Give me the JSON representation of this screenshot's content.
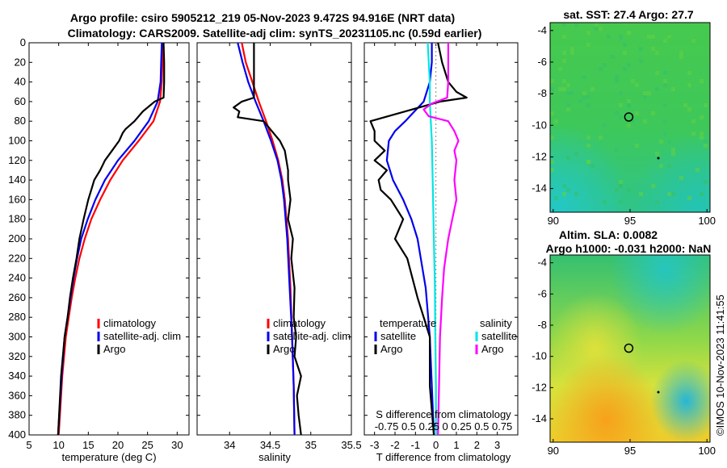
{
  "header": {
    "title_line1": "Argo profile: csiro 5905212_219 05-Nov-2023 9.472S 94.916E (NRT data)",
    "title_line2": "Climatology: CARS2009. Satellite-adj clim: synTS_20231105.nc (0.59d earlier)"
  },
  "colors": {
    "climatology": "#ff0000",
    "satellite": "#0000ee",
    "argo": "#000000",
    "sal_satellite": "#00e5e5",
    "sal_argo": "#ff00ff"
  },
  "chart_data": [
    {
      "type": "line",
      "id": "temperature",
      "xlabel": "temperature (deg C)",
      "ylabel": "",
      "xlim": [
        5,
        32
      ],
      "ylim": [
        400,
        0
      ],
      "xticks": [
        "5",
        "10",
        "15",
        "20",
        "25",
        "30"
      ],
      "xtick_values": [
        5,
        10,
        15,
        20,
        25,
        30
      ],
      "yticks": [
        "0",
        "20",
        "40",
        "60",
        "80",
        "100",
        "120",
        "140",
        "160",
        "180",
        "200",
        "220",
        "240",
        "260",
        "280",
        "300",
        "320",
        "340",
        "360",
        "380",
        "400"
      ],
      "ytick_values": [
        0,
        20,
        40,
        60,
        80,
        100,
        120,
        140,
        160,
        180,
        200,
        220,
        240,
        260,
        280,
        300,
        320,
        340,
        360,
        380,
        400
      ],
      "legend": [
        "climatology",
        "satellite-adj. clim",
        "Argo"
      ],
      "series": [
        {
          "name": "climatology",
          "depth": [
            0,
            20,
            40,
            60,
            80,
            100,
            120,
            140,
            160,
            180,
            200,
            220,
            240,
            260,
            280,
            300,
            340,
            400
          ],
          "values": [
            27.6,
            27.5,
            27.4,
            27.1,
            26.0,
            23.5,
            20.8,
            18.7,
            17.0,
            15.5,
            14.4,
            13.5,
            12.8,
            12.2,
            11.7,
            11.2,
            10.6,
            10.0
          ]
        },
        {
          "name": "satellite-adj. clim",
          "depth": [
            0,
            20,
            40,
            60,
            80,
            100,
            120,
            140,
            160,
            180,
            200,
            220,
            240,
            260,
            280,
            300,
            340,
            400
          ],
          "values": [
            27.4,
            27.3,
            27.2,
            26.7,
            25.2,
            22.8,
            20.0,
            17.8,
            16.2,
            14.9,
            13.8,
            13.1,
            12.5,
            12.0,
            11.5,
            11.0,
            10.5,
            9.9
          ]
        },
        {
          "name": "Argo",
          "depth": [
            0,
            20,
            40,
            56,
            60,
            70,
            80,
            88,
            92,
            100,
            110,
            120,
            130,
            140,
            150,
            160,
            170,
            180,
            200,
            220,
            240,
            260,
            280,
            300,
            340,
            400
          ],
          "values": [
            27.7,
            27.8,
            27.8,
            27.7,
            26.2,
            24.2,
            22.8,
            21.3,
            20.8,
            20.2,
            19.0,
            17.8,
            17.0,
            16.0,
            15.5,
            15.0,
            14.6,
            14.2,
            13.5,
            13.0,
            12.4,
            11.9,
            11.5,
            11.0,
            10.4,
            9.9
          ]
        }
      ]
    },
    {
      "type": "line",
      "id": "salinity",
      "xlabel": "salinity",
      "xlim": [
        33.6,
        35.5
      ],
      "ylim": [
        400,
        0
      ],
      "xticks": [
        "34",
        "34.5",
        "35",
        "35.5"
      ],
      "xtick_values": [
        34,
        34.5,
        35,
        35.5
      ],
      "legend": [
        "climatology",
        "satellite-adj. clim",
        "Argo"
      ],
      "series": [
        {
          "name": "climatology",
          "depth": [
            0,
            20,
            40,
            60,
            80,
            100,
            120,
            140,
            160,
            180,
            200,
            250,
            300,
            350,
            400
          ],
          "values": [
            34.15,
            34.2,
            34.28,
            34.36,
            34.45,
            34.53,
            34.6,
            34.65,
            34.68,
            34.7,
            34.72,
            34.75,
            34.77,
            34.79,
            34.8
          ]
        },
        {
          "name": "satellite-adj. clim",
          "depth": [
            0,
            20,
            40,
            60,
            80,
            100,
            120,
            140,
            160,
            180,
            200,
            250,
            300,
            350,
            400
          ],
          "values": [
            34.1,
            34.16,
            34.23,
            34.32,
            34.42,
            34.51,
            34.59,
            34.64,
            34.67,
            34.69,
            34.71,
            34.74,
            34.77,
            34.79,
            34.8
          ]
        },
        {
          "name": "Argo",
          "depth": [
            0,
            20,
            40,
            56,
            60,
            66,
            70,
            76,
            80,
            90,
            100,
            110,
            120,
            130,
            140,
            160,
            180,
            200,
            220,
            250,
            280,
            300,
            320,
            340,
            360,
            380,
            400
          ],
          "values": [
            34.3,
            34.3,
            34.3,
            34.3,
            34.15,
            34.05,
            34.12,
            34.1,
            34.42,
            34.52,
            34.62,
            34.68,
            34.7,
            34.72,
            34.72,
            34.75,
            34.72,
            34.78,
            34.76,
            34.8,
            34.79,
            34.82,
            34.8,
            34.88,
            34.83,
            34.85,
            34.88
          ]
        }
      ]
    },
    {
      "type": "line",
      "id": "difference",
      "xlabel": "T difference from climatology",
      "xlim": [
        -3.5,
        4
      ],
      "ylim": [
        400,
        0
      ],
      "xticks": [
        "-3",
        "-2",
        "-1",
        "0",
        "1",
        "2",
        "3"
      ],
      "xtick_values": [
        -3,
        -2,
        -1,
        0,
        1,
        2,
        3
      ],
      "legend_temperature": {
        "title": "temperature",
        "items": [
          "satellite",
          "Argo"
        ]
      },
      "legend_salinity": {
        "title": "salinity",
        "items": [
          "satellite",
          "Argo"
        ]
      },
      "annotation_line1": "S difference from climatology",
      "annotation_line2": "-0.75 0.5 0.25 0 0.25 0.5 0.75",
      "series": [
        {
          "name": "temperature satellite",
          "depth": [
            0,
            20,
            40,
            60,
            80,
            90,
            100,
            120,
            140,
            160,
            180,
            200,
            250,
            300,
            350,
            400
          ],
          "values": [
            -0.2,
            -0.2,
            -0.3,
            -0.6,
            -1.5,
            -2.0,
            -2.3,
            -2.4,
            -2.1,
            -1.6,
            -1.2,
            -0.9,
            -0.5,
            -0.3,
            -0.2,
            -0.1
          ]
        },
        {
          "name": "temperature Argo",
          "depth": [
            0,
            20,
            40,
            50,
            56,
            60,
            70,
            80,
            90,
            100,
            110,
            120,
            130,
            140,
            150,
            160,
            180,
            200,
            220,
            260,
            300,
            350,
            400
          ],
          "values": [
            0.1,
            0.3,
            0.6,
            1.0,
            1.5,
            0.2,
            -1.5,
            -3.2,
            -3.0,
            -3.0,
            -2.5,
            -3.0,
            -2.4,
            -2.8,
            -2.7,
            -2.2,
            -1.6,
            -2.0,
            -1.4,
            -0.9,
            -0.3,
            -0.3,
            -0.1
          ]
        },
        {
          "name": "salinity satellite",
          "depth": [
            0,
            20,
            40,
            60,
            80,
            100,
            150,
            200,
            250,
            300,
            350,
            400
          ],
          "values": [
            -0.4,
            -0.35,
            -0.3,
            -0.3,
            -0.25,
            -0.2,
            -0.15,
            -0.1,
            -0.05,
            -0.03,
            0.0,
            0.0
          ]
        },
        {
          "name": "salinity Argo",
          "depth": [
            0,
            20,
            40,
            56,
            62,
            68,
            75,
            80,
            90,
            100,
            110,
            120,
            140,
            160,
            180,
            200,
            230,
            260,
            300,
            350,
            400
          ],
          "values": [
            0.6,
            0.6,
            0.6,
            0.55,
            -0.2,
            -0.6,
            -0.35,
            0.6,
            0.9,
            1.1,
            0.9,
            1.0,
            0.9,
            1.0,
            0.8,
            0.6,
            0.4,
            0.3,
            0.2,
            0.15,
            0.1
          ]
        }
      ]
    },
    {
      "type": "heatmap",
      "id": "sst-map",
      "title": "sat. SST: 27.4 Argo: 27.7",
      "xlim": [
        89.8,
        100.2
      ],
      "ylim": [
        -15.5,
        -3.5
      ],
      "xticks": [
        "90",
        "95",
        "100"
      ],
      "xtick_values": [
        90,
        95,
        100
      ],
      "yticks": [
        "-4",
        "-6",
        "-8",
        "-10",
        "-12",
        "-14"
      ],
      "ytick_values": [
        -4,
        -6,
        -8,
        -10,
        -12,
        -14
      ],
      "marker": [
        94.916,
        -9.472
      ]
    },
    {
      "type": "heatmap",
      "id": "sla-map",
      "title_line1": "Altim. SLA: 0.0082",
      "title_line2": "Argo h1000: -0.031 h2000: NaN",
      "xlim": [
        89.8,
        100.2
      ],
      "ylim": [
        -15.5,
        -3.5
      ],
      "xticks": [
        "90",
        "95",
        "100"
      ],
      "xtick_values": [
        90,
        95,
        100
      ],
      "yticks": [
        "-4",
        "-6",
        "-8",
        "-10",
        "-12",
        "-14"
      ],
      "ytick_values": [
        -4,
        -6,
        -8,
        -10,
        -12,
        -14
      ],
      "marker": [
        94.916,
        -9.472
      ]
    }
  ],
  "footer": {
    "stamp": "©IMOS 10-Nov-2023 11:41:55"
  }
}
